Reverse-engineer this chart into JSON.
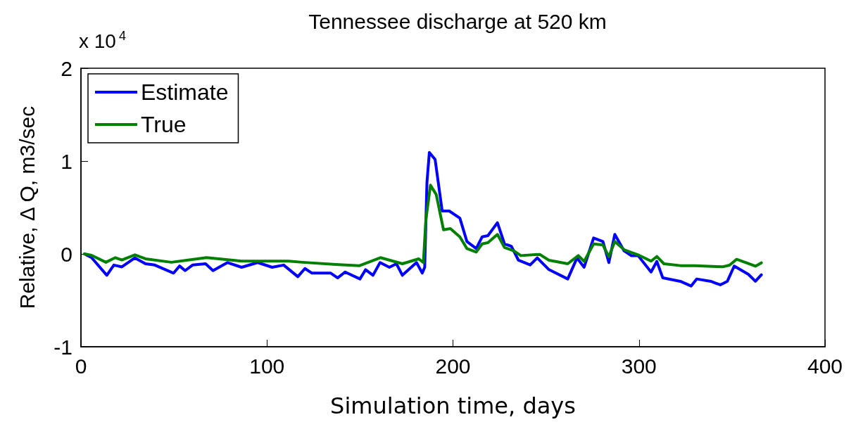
{
  "chart_data": {
    "type": "line",
    "title": "Tennessee discharge at 520 km",
    "xlabel": "Simulation time, days",
    "ylabel": "Relative, Δ Q, m3/sec",
    "annotations": [
      "x 10$^{4}$"
    ],
    "xlim": [
      0,
      400
    ],
    "xticks": [
      0,
      100,
      200,
      300,
      400
    ],
    "ylim": [
      -1,
      2
    ],
    "yticks": [
      -1,
      0,
      1,
      2
    ],
    "grid": false,
    "legend": "top left",
    "marker": "none",
    "line_style": "solid",
    "series": [
      {
        "name": "Estimate",
        "color": "#0000ff",
        "x": [
          1.9,
          5.7,
          13.9,
          17.7,
          22,
          29,
          34.7,
          39.7,
          49.8,
          53,
          56,
          60,
          67,
          71,
          78.8,
          86.4,
          95,
          102.8,
          109,
          116.6,
          120.4,
          124.2,
          134.3,
          138,
          142,
          150,
          153,
          157,
          160.8,
          165.8,
          169.6,
          172.8,
          180.4,
          183.5,
          184.8,
          186,
          187.3,
          190.4,
          194.2,
          198,
          203.7,
          207.5,
          212.5,
          215.7,
          218.8,
          223.9,
          227.7,
          231.4,
          235.2,
          241.5,
          245.3,
          251.6,
          261.7,
          266.7,
          270.5,
          275.6,
          280.6,
          283.8,
          287,
          292,
          295.8,
          299.5,
          306.5,
          309.6,
          312.8,
          322.2,
          328,
          331,
          338.6,
          343.7,
          347.5,
          351.2,
          358.8,
          362.6,
          365.8
        ],
        "values": [
          0,
          -0.04,
          -0.23,
          -0.12,
          -0.14,
          -0.043,
          -0.106,
          -0.12,
          -0.207,
          -0.13,
          -0.18,
          -0.12,
          -0.106,
          -0.18,
          -0.093,
          -0.144,
          -0.093,
          -0.144,
          -0.12,
          -0.245,
          -0.157,
          -0.207,
          -0.207,
          -0.258,
          -0.195,
          -0.27,
          -0.17,
          -0.23,
          -0.093,
          -0.144,
          -0.106,
          -0.23,
          -0.093,
          -0.207,
          -0.144,
          0.765,
          1.093,
          1.017,
          0.462,
          0.462,
          0.386,
          0.134,
          0.058,
          0.184,
          0.197,
          0.336,
          0.108,
          0.083,
          -0.068,
          -0.119,
          -0.043,
          -0.169,
          -0.27,
          -0.043,
          -0.144,
          0.172,
          0.134,
          -0.093,
          0.21,
          0.033,
          -0.018,
          -0.018,
          -0.195,
          -0.081,
          -0.258,
          -0.295,
          -0.346,
          -0.27,
          -0.295,
          -0.333,
          -0.295,
          -0.131,
          -0.22,
          -0.295,
          -0.225
        ]
      },
      {
        "name": "True",
        "color": "#008000",
        "x": [
          1.9,
          5.7,
          13.4,
          18.5,
          22,
          29,
          34.7,
          48.6,
          67.5,
          86.4,
          111.6,
          119,
          137,
          149.6,
          161,
          172.8,
          181.6,
          184.1,
          185.4,
          187.9,
          191,
          194.9,
          198.6,
          203.7,
          207.5,
          212.5,
          215.7,
          218.8,
          223.9,
          227.7,
          232.7,
          236.5,
          246.6,
          251.6,
          261.7,
          267.4,
          270.5,
          275.6,
          280.6,
          283.8,
          287,
          292,
          299.5,
          306.5,
          309.6,
          313.4,
          322.2,
          329.8,
          344.9,
          348.7,
          352.5,
          358.8,
          362.6,
          365.8
        ],
        "values": [
          0,
          -0.015,
          -0.09,
          -0.04,
          -0.065,
          -0.01,
          -0.053,
          -0.09,
          -0.04,
          -0.078,
          -0.078,
          -0.09,
          -0.114,
          -0.127,
          -0.04,
          -0.106,
          -0.053,
          -0.093,
          0.361,
          0.74,
          0.639,
          0.26,
          0.273,
          0.184,
          0.058,
          0.02,
          0.108,
          0.121,
          0.21,
          0.07,
          0.033,
          -0.018,
          -0.005,
          -0.068,
          -0.106,
          -0.018,
          -0.081,
          0.108,
          0.096,
          -0.03,
          0.134,
          0.045,
          -0.01,
          -0.078,
          -0.028,
          -0.106,
          -0.126,
          -0.126,
          -0.139,
          -0.121,
          -0.058,
          -0.103,
          -0.132,
          -0.096
        ]
      }
    ]
  }
}
